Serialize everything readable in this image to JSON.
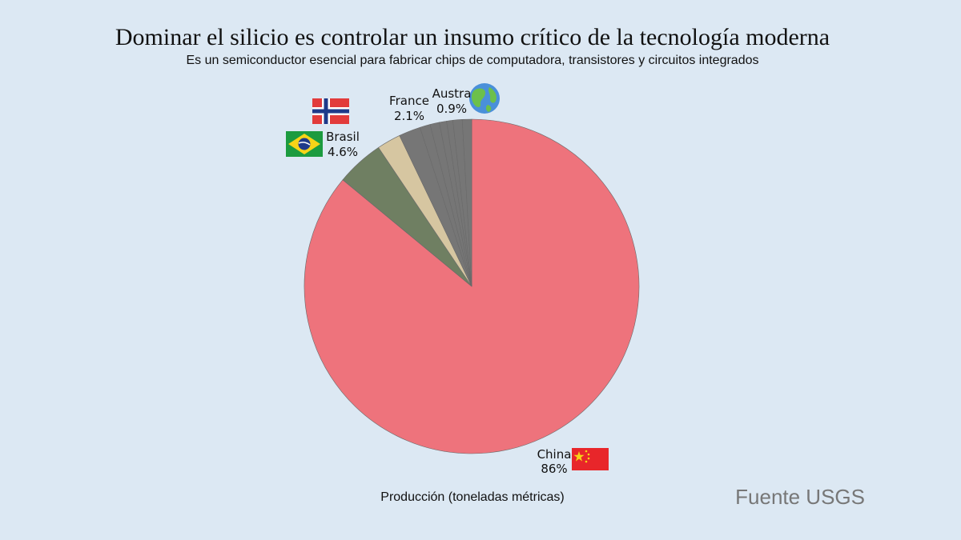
{
  "title": "Dominar el silicio es controlar un insumo crítico de la tecnología moderna",
  "subtitle": "Es un semiconductor esencial para fabricar chips de computadora, transistores y circuitos integrados",
  "source": "Fuente USGS",
  "chart_data": {
    "type": "pie",
    "xlabel": "Producción (toneladas métricas)",
    "slices": [
      {
        "name": "China",
        "value": 86,
        "label_value": "86%",
        "color": "#ee737c",
        "icon": "china-flag-icon"
      },
      {
        "name": "Brasil",
        "value": 4.6,
        "label_value": "4.6%",
        "color": "#6f7f62",
        "icon": "brazil-flag-icon"
      },
      {
        "name": "",
        "value": 2.3,
        "label_value": "",
        "color": "#d6c6a1",
        "icon": "norway-flag-icon"
      },
      {
        "name": "France",
        "value": 2.1,
        "label_value": "2.1%",
        "color": "#767676",
        "icon": ""
      },
      {
        "name": "",
        "value": 1.0,
        "label_value": "",
        "color": "#767676",
        "icon": ""
      },
      {
        "name": "",
        "value": 0.9,
        "label_value": "",
        "color": "#767676",
        "icon": ""
      },
      {
        "name": "",
        "value": 0.7,
        "label_value": "",
        "color": "#767676",
        "icon": ""
      },
      {
        "name": "",
        "value": 0.6,
        "label_value": "",
        "color": "#767676",
        "icon": ""
      },
      {
        "name": "Austra",
        "value": 0.9,
        "label_value": "0.9%",
        "color": "#767676",
        "icon": "globe-icon"
      },
      {
        "name": "",
        "value": 0.9,
        "label_value": "",
        "color": "#767676",
        "icon": ""
      }
    ]
  }
}
